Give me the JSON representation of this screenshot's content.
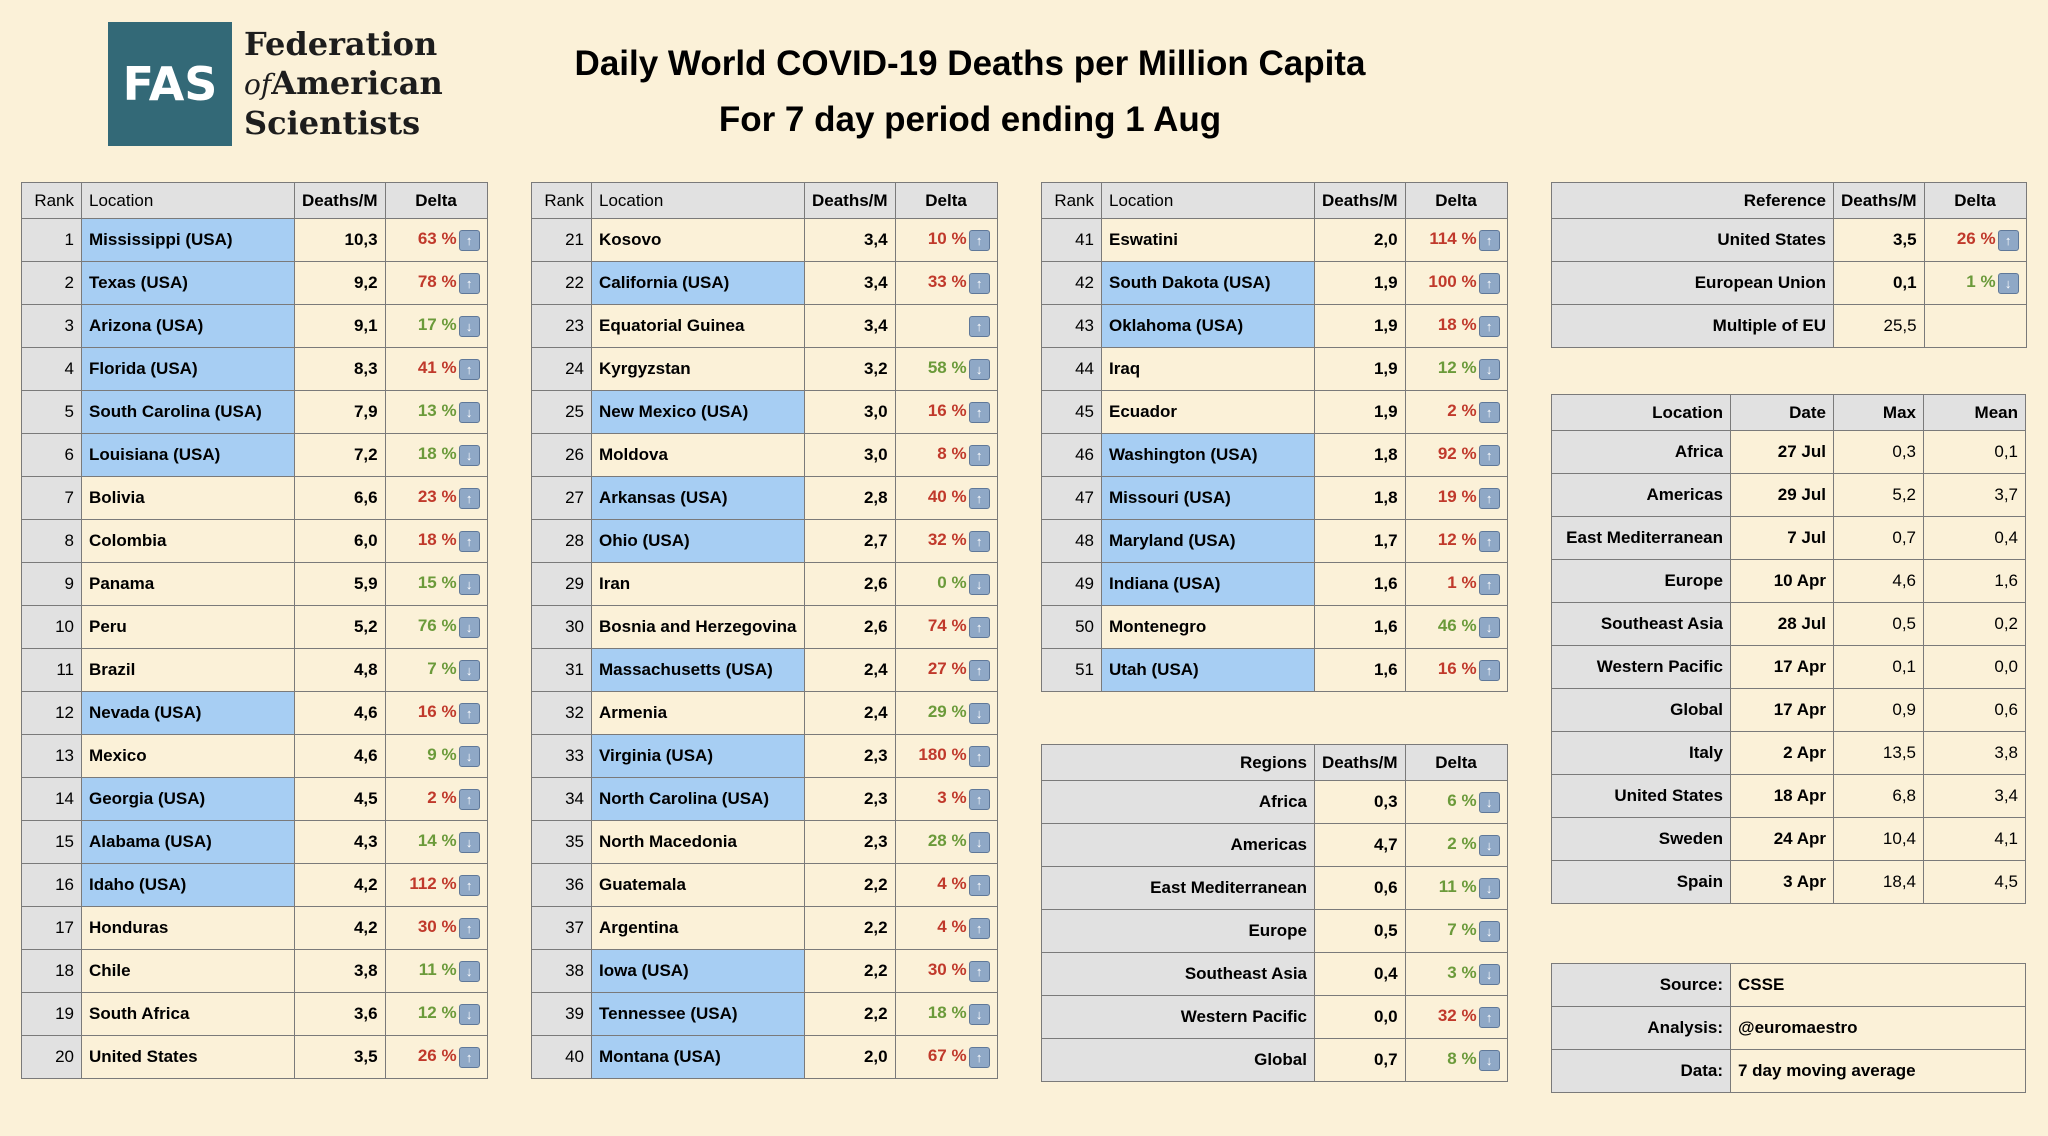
{
  "logo": {
    "initials": "FAS",
    "line1": "Federation",
    "line2_of": "of",
    "line2": "American",
    "line3": "Scientists"
  },
  "title": {
    "line1": "Daily World COVID-19 Deaths per Million Capita",
    "line2": "For 7 day period ending 1 Aug"
  },
  "headers": {
    "rank": "Rank",
    "location": "Location",
    "deaths": "Deaths/M",
    "delta": "Delta"
  },
  "rows": [
    {
      "rank": "1",
      "location": "Mississippi (USA)",
      "usa": true,
      "deaths": "10,3",
      "delta": "63 %",
      "dir": "up"
    },
    {
      "rank": "2",
      "location": "Texas (USA)",
      "usa": true,
      "deaths": "9,2",
      "delta": "78 %",
      "dir": "up"
    },
    {
      "rank": "3",
      "location": "Arizona (USA)",
      "usa": true,
      "deaths": "9,1",
      "delta": "17 %",
      "dir": "down"
    },
    {
      "rank": "4",
      "location": "Florida (USA)",
      "usa": true,
      "deaths": "8,3",
      "delta": "41 %",
      "dir": "up"
    },
    {
      "rank": "5",
      "location": "South Carolina (USA)",
      "usa": true,
      "deaths": "7,9",
      "delta": "13 %",
      "dir": "down"
    },
    {
      "rank": "6",
      "location": "Louisiana (USA)",
      "usa": true,
      "deaths": "7,2",
      "delta": "18 %",
      "dir": "down"
    },
    {
      "rank": "7",
      "location": "Bolivia",
      "usa": false,
      "deaths": "6,6",
      "delta": "23 %",
      "dir": "up"
    },
    {
      "rank": "8",
      "location": "Colombia",
      "usa": false,
      "deaths": "6,0",
      "delta": "18 %",
      "dir": "up"
    },
    {
      "rank": "9",
      "location": "Panama",
      "usa": false,
      "deaths": "5,9",
      "delta": "15 %",
      "dir": "down"
    },
    {
      "rank": "10",
      "location": "Peru",
      "usa": false,
      "deaths": "5,2",
      "delta": "76 %",
      "dir": "down"
    },
    {
      "rank": "11",
      "location": "Brazil",
      "usa": false,
      "deaths": "4,8",
      "delta": "7 %",
      "dir": "down"
    },
    {
      "rank": "12",
      "location": "Nevada (USA)",
      "usa": true,
      "deaths": "4,6",
      "delta": "16 %",
      "dir": "up"
    },
    {
      "rank": "13",
      "location": "Mexico",
      "usa": false,
      "deaths": "4,6",
      "delta": "9 %",
      "dir": "down"
    },
    {
      "rank": "14",
      "location": "Georgia (USA)",
      "usa": true,
      "deaths": "4,5",
      "delta": "2 %",
      "dir": "up"
    },
    {
      "rank": "15",
      "location": "Alabama (USA)",
      "usa": true,
      "deaths": "4,3",
      "delta": "14 %",
      "dir": "down"
    },
    {
      "rank": "16",
      "location": "Idaho (USA)",
      "usa": true,
      "deaths": "4,2",
      "delta": "112 %",
      "dir": "up"
    },
    {
      "rank": "17",
      "location": "Honduras",
      "usa": false,
      "deaths": "4,2",
      "delta": "30 %",
      "dir": "up"
    },
    {
      "rank": "18",
      "location": "Chile",
      "usa": false,
      "deaths": "3,8",
      "delta": "11 %",
      "dir": "down"
    },
    {
      "rank": "19",
      "location": "South Africa",
      "usa": false,
      "deaths": "3,6",
      "delta": "12 %",
      "dir": "down"
    },
    {
      "rank": "20",
      "location": "United States",
      "usa": false,
      "deaths": "3,5",
      "delta": "26 %",
      "dir": "up"
    },
    {
      "rank": "21",
      "location": "Kosovo",
      "usa": false,
      "deaths": "3,4",
      "delta": "10 %",
      "dir": "up"
    },
    {
      "rank": "22",
      "location": "California (USA)",
      "usa": true,
      "deaths": "3,4",
      "delta": "33 %",
      "dir": "up"
    },
    {
      "rank": "23",
      "location": "Equatorial Guinea",
      "usa": false,
      "deaths": "3,4",
      "delta": "",
      "dir": "up"
    },
    {
      "rank": "24",
      "location": "Kyrgyzstan",
      "usa": false,
      "deaths": "3,2",
      "delta": "58 %",
      "dir": "down"
    },
    {
      "rank": "25",
      "location": "New Mexico (USA)",
      "usa": true,
      "deaths": "3,0",
      "delta": "16 %",
      "dir": "up"
    },
    {
      "rank": "26",
      "location": "Moldova",
      "usa": false,
      "deaths": "3,0",
      "delta": "8 %",
      "dir": "up"
    },
    {
      "rank": "27",
      "location": "Arkansas (USA)",
      "usa": true,
      "deaths": "2,8",
      "delta": "40 %",
      "dir": "up"
    },
    {
      "rank": "28",
      "location": "Ohio (USA)",
      "usa": true,
      "deaths": "2,7",
      "delta": "32 %",
      "dir": "up"
    },
    {
      "rank": "29",
      "location": "Iran",
      "usa": false,
      "deaths": "2,6",
      "delta": "0 %",
      "dir": "down"
    },
    {
      "rank": "30",
      "location": "Bosnia and Herzegovina",
      "usa": false,
      "deaths": "2,6",
      "delta": "74 %",
      "dir": "up"
    },
    {
      "rank": "31",
      "location": "Massachusetts (USA)",
      "usa": true,
      "deaths": "2,4",
      "delta": "27 %",
      "dir": "up"
    },
    {
      "rank": "32",
      "location": "Armenia",
      "usa": false,
      "deaths": "2,4",
      "delta": "29 %",
      "dir": "down"
    },
    {
      "rank": "33",
      "location": "Virginia (USA)",
      "usa": true,
      "deaths": "2,3",
      "delta": "180 %",
      "dir": "up"
    },
    {
      "rank": "34",
      "location": "North Carolina (USA)",
      "usa": true,
      "deaths": "2,3",
      "delta": "3 %",
      "dir": "up"
    },
    {
      "rank": "35",
      "location": "North Macedonia",
      "usa": false,
      "deaths": "2,3",
      "delta": "28 %",
      "dir": "down"
    },
    {
      "rank": "36",
      "location": "Guatemala",
      "usa": false,
      "deaths": "2,2",
      "delta": "4 %",
      "dir": "up"
    },
    {
      "rank": "37",
      "location": "Argentina",
      "usa": false,
      "deaths": "2,2",
      "delta": "4 %",
      "dir": "up"
    },
    {
      "rank": "38",
      "location": "Iowa (USA)",
      "usa": true,
      "deaths": "2,2",
      "delta": "30 %",
      "dir": "up"
    },
    {
      "rank": "39",
      "location": "Tennessee (USA)",
      "usa": true,
      "deaths": "2,2",
      "delta": "18 %",
      "dir": "down"
    },
    {
      "rank": "40",
      "location": "Montana (USA)",
      "usa": true,
      "deaths": "2,0",
      "delta": "67 %",
      "dir": "up"
    },
    {
      "rank": "41",
      "location": "Eswatini",
      "usa": false,
      "deaths": "2,0",
      "delta": "114 %",
      "dir": "up"
    },
    {
      "rank": "42",
      "location": "South Dakota (USA)",
      "usa": true,
      "deaths": "1,9",
      "delta": "100 %",
      "dir": "up"
    },
    {
      "rank": "43",
      "location": "Oklahoma (USA)",
      "usa": true,
      "deaths": "1,9",
      "delta": "18 %",
      "dir": "up"
    },
    {
      "rank": "44",
      "location": "Iraq",
      "usa": false,
      "deaths": "1,9",
      "delta": "12 %",
      "dir": "down"
    },
    {
      "rank": "45",
      "location": "Ecuador",
      "usa": false,
      "deaths": "1,9",
      "delta": "2 %",
      "dir": "up"
    },
    {
      "rank": "46",
      "location": "Washington (USA)",
      "usa": true,
      "deaths": "1,8",
      "delta": "92 %",
      "dir": "up"
    },
    {
      "rank": "47",
      "location": "Missouri (USA)",
      "usa": true,
      "deaths": "1,8",
      "delta": "19 %",
      "dir": "up"
    },
    {
      "rank": "48",
      "location": "Maryland (USA)",
      "usa": true,
      "deaths": "1,7",
      "delta": "12 %",
      "dir": "up"
    },
    {
      "rank": "49",
      "location": "Indiana (USA)",
      "usa": true,
      "deaths": "1,6",
      "delta": "1 %",
      "dir": "up"
    },
    {
      "rank": "50",
      "location": "Montenegro",
      "usa": false,
      "deaths": "1,6",
      "delta": "46 %",
      "dir": "down"
    },
    {
      "rank": "51",
      "location": "Utah (USA)",
      "usa": true,
      "deaths": "1,6",
      "delta": "16 %",
      "dir": "up"
    }
  ],
  "regions": {
    "header": "Regions",
    "rows": [
      {
        "name": "Africa",
        "deaths": "0,3",
        "delta": "6 %",
        "dir": "down"
      },
      {
        "name": "Americas",
        "deaths": "4,7",
        "delta": "2 %",
        "dir": "down"
      },
      {
        "name": "East Mediterranean",
        "deaths": "0,6",
        "delta": "11 %",
        "dir": "down"
      },
      {
        "name": "Europe",
        "deaths": "0,5",
        "delta": "7 %",
        "dir": "down"
      },
      {
        "name": "Southeast Asia",
        "deaths": "0,4",
        "delta": "3 %",
        "dir": "down"
      },
      {
        "name": "Western Pacific",
        "deaths": "0,0",
        "delta": "32 %",
        "dir": "up"
      },
      {
        "name": "Global",
        "deaths": "0,7",
        "delta": "8 %",
        "dir": "down"
      }
    ]
  },
  "reference": {
    "header": "Reference",
    "rows": [
      {
        "name": "United States",
        "deaths": "3,5",
        "delta": "26 %",
        "dir": "up"
      },
      {
        "name": "European Union",
        "deaths": "0,1",
        "delta": "1 %",
        "dir": "down"
      },
      {
        "name": "Multiple of EU",
        "deaths": "25,5",
        "delta": "",
        "dir": ""
      }
    ]
  },
  "peaks": {
    "headers": {
      "location": "Location",
      "date": "Date",
      "max": "Max",
      "mean": "Mean"
    },
    "rows": [
      {
        "location": "Africa",
        "date": "27 Jul",
        "max": "0,3",
        "mean": "0,1"
      },
      {
        "location": "Americas",
        "date": "29 Jul",
        "max": "5,2",
        "mean": "3,7"
      },
      {
        "location": "East Mediterranean",
        "date": "7 Jul",
        "max": "0,7",
        "mean": "0,4"
      },
      {
        "location": "Europe",
        "date": "10 Apr",
        "max": "4,6",
        "mean": "1,6"
      },
      {
        "location": "Southeast Asia",
        "date": "28 Jul",
        "max": "0,5",
        "mean": "0,2"
      },
      {
        "location": "Western Pacific",
        "date": "17 Apr",
        "max": "0,1",
        "mean": "0,0"
      },
      {
        "location": "Global",
        "date": "17 Apr",
        "max": "0,9",
        "mean": "0,6"
      },
      {
        "location": "Italy",
        "date": "2 Apr",
        "max": "13,5",
        "mean": "3,8"
      },
      {
        "location": "United States",
        "date": "18 Apr",
        "max": "6,8",
        "mean": "3,4"
      },
      {
        "location": "Sweden",
        "date": "24 Apr",
        "max": "10,4",
        "mean": "4,1"
      },
      {
        "location": "Spain",
        "date": "3 Apr",
        "max": "18,4",
        "mean": "4,5"
      }
    ]
  },
  "source": {
    "rows": [
      {
        "label": "Source:",
        "value": "CSSE"
      },
      {
        "label": "Analysis:",
        "value": "@euromaestro"
      },
      {
        "label": "Data:",
        "value": "7 day moving average"
      }
    ]
  },
  "colors": {
    "background": "#FBF1D8",
    "usa_highlight": "#A7CEF3",
    "increase": "#C0392B",
    "decrease": "#6B9A3A",
    "logo": "#336977"
  },
  "icons": {
    "up": "arrow-up-icon",
    "down": "arrow-down-icon"
  }
}
